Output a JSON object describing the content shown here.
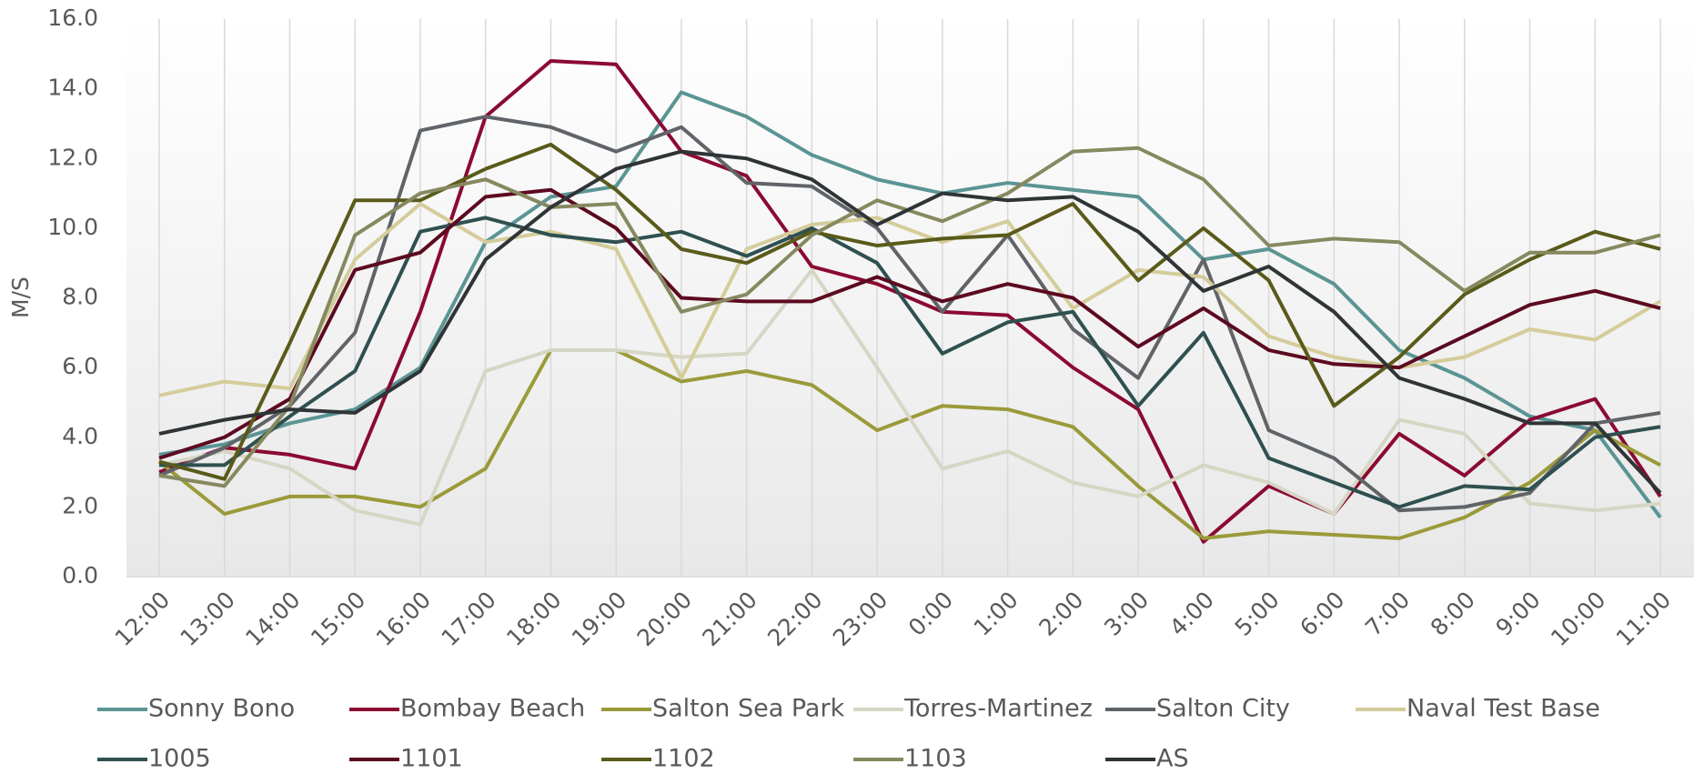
{
  "chart_data": {
    "type": "line",
    "y_label": "M/S",
    "categories": [
      "12:00",
      "13:00",
      "14:00",
      "15:00",
      "16:00",
      "17:00",
      "18:00",
      "19:00",
      "20:00",
      "21:00",
      "22:00",
      "23:00",
      "0:00",
      "1:00",
      "2:00",
      "3:00",
      "4:00",
      "5:00",
      "6:00",
      "7:00",
      "8:00",
      "9:00",
      "10:00",
      "11:00"
    ],
    "ylim": [
      0,
      16
    ],
    "yticks": [
      {
        "value": 0,
        "label": "0.0"
      },
      {
        "value": 2,
        "label": "2.0"
      },
      {
        "value": 4,
        "label": "4.0"
      },
      {
        "value": 6,
        "label": "6.0"
      },
      {
        "value": 8,
        "label": "8.0"
      },
      {
        "value": 10,
        "label": "10.0"
      },
      {
        "value": 12,
        "label": "12.0"
      },
      {
        "value": 14,
        "label": "14.0"
      },
      {
        "value": 16,
        "label": "16.0"
      }
    ],
    "grid": "x",
    "legend": "bottom",
    "series": [
      {
        "name": "Sonny Bono",
        "color": "#5b9494",
        "values": [
          3.5,
          3.8,
          4.4,
          4.8,
          6.0,
          9.6,
          10.9,
          11.2,
          13.9,
          13.2,
          12.1,
          11.4,
          11.0,
          11.3,
          11.1,
          10.9,
          9.1,
          9.4,
          8.4,
          6.5,
          5.7,
          4.6,
          4.2,
          1.7
        ]
      },
      {
        "name": "Bombay Beach",
        "color": "#8b0a32",
        "values": [
          3.0,
          3.7,
          3.5,
          3.1,
          7.6,
          13.2,
          14.8,
          14.7,
          12.2,
          11.5,
          8.9,
          8.4,
          7.6,
          7.5,
          6.0,
          4.8,
          1.0,
          2.6,
          1.8,
          4.1,
          2.9,
          4.5,
          5.1,
          2.3
        ]
      },
      {
        "name": "Salton Sea Park",
        "color": "#9a9a3a",
        "values": [
          3.3,
          1.8,
          2.3,
          2.3,
          2.0,
          3.1,
          6.5,
          6.5,
          5.6,
          5.9,
          5.5,
          4.2,
          4.9,
          4.8,
          4.3,
          2.6,
          1.1,
          1.3,
          1.2,
          1.1,
          1.7,
          2.7,
          4.2,
          3.2
        ]
      },
      {
        "name": "Torres-Martinez",
        "color": "#d6d6c4",
        "values": [
          3.2,
          3.6,
          3.1,
          1.9,
          1.5,
          5.9,
          6.5,
          6.5,
          6.3,
          6.4,
          8.8,
          6.0,
          3.1,
          3.6,
          2.7,
          2.3,
          3.2,
          2.7,
          1.8,
          4.5,
          4.1,
          2.1,
          1.9,
          2.1
        ]
      },
      {
        "name": "Salton City",
        "color": "#606468",
        "values": [
          2.9,
          3.7,
          4.9,
          7.0,
          12.8,
          13.2,
          12.9,
          12.2,
          12.9,
          11.3,
          11.2,
          10.0,
          7.6,
          9.8,
          7.1,
          5.7,
          9.1,
          4.2,
          3.4,
          1.9,
          2.0,
          2.4,
          4.4,
          4.7
        ]
      },
      {
        "name": "Naval Test Base",
        "color": "#d4cc9a",
        "values": [
          5.2,
          5.6,
          5.4,
          9.1,
          10.7,
          9.6,
          9.9,
          9.4,
          5.7,
          9.4,
          10.1,
          10.3,
          9.6,
          10.2,
          7.7,
          8.8,
          8.6,
          6.9,
          6.3,
          6.0,
          6.3,
          7.1,
          6.8,
          7.9
        ]
      },
      {
        "name": "1005",
        "color": "#2f5050",
        "values": [
          3.2,
          3.2,
          4.6,
          5.9,
          9.9,
          10.3,
          9.8,
          9.6,
          9.9,
          9.2,
          10.0,
          9.0,
          6.4,
          7.3,
          7.6,
          4.9,
          7.0,
          3.4,
          2.7,
          2.0,
          2.6,
          2.5,
          4.0,
          4.3
        ]
      },
      {
        "name": "1101",
        "color": "#5c0a20",
        "values": [
          3.4,
          4.0,
          5.1,
          8.8,
          9.3,
          10.9,
          11.1,
          10.0,
          8.0,
          7.9,
          7.9,
          8.6,
          7.9,
          8.4,
          8.0,
          6.6,
          7.7,
          6.5,
          6.1,
          6.0,
          6.9,
          7.8,
          8.2,
          7.7
        ]
      },
      {
        "name": "1102",
        "color": "#5a5a1a",
        "values": [
          3.3,
          2.8,
          6.7,
          10.8,
          10.8,
          11.7,
          12.4,
          11.1,
          9.4,
          9.0,
          9.9,
          9.5,
          9.7,
          9.8,
          10.7,
          8.5,
          10.0,
          8.5,
          4.9,
          6.3,
          8.1,
          9.1,
          9.9,
          9.4
        ]
      },
      {
        "name": "1103",
        "color": "#86895f",
        "values": [
          2.9,
          2.6,
          4.9,
          9.8,
          11.0,
          11.4,
          10.6,
          10.7,
          7.6,
          8.1,
          9.8,
          10.8,
          10.2,
          11.0,
          12.2,
          12.3,
          11.4,
          9.5,
          9.7,
          9.6,
          8.2,
          9.3,
          9.3,
          9.8
        ]
      },
      {
        "name": "AS",
        "color": "#2f3436",
        "values": [
          4.1,
          4.5,
          4.8,
          4.7,
          5.9,
          9.1,
          10.6,
          11.7,
          12.2,
          12.0,
          11.4,
          10.1,
          11.0,
          10.8,
          10.9,
          9.9,
          8.2,
          8.9,
          7.6,
          5.7,
          5.1,
          4.4,
          4.4,
          2.4
        ]
      }
    ]
  }
}
